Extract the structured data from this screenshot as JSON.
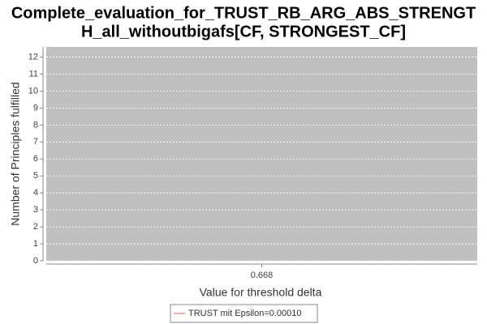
{
  "chart_data": {
    "type": "line",
    "title": [
      "Complete_evaluation_for_TRUST_RB_ARG_ABS_STRENGT",
      "H_all_withoutbigafs[CF, STRONGEST_CF]"
    ],
    "x_label": "Value for threshold delta",
    "y_label": "Number of Principles fulfilled",
    "categories": [
      "0.668"
    ],
    "series": [
      {
        "name": "TRUST mit Epsilon=0.00010",
        "color": "#ff5555",
        "values": [
          null
        ]
      }
    ],
    "ylim": [
      0,
      12.6
    ],
    "yticks": [
      0,
      1,
      2,
      3,
      4,
      5,
      6,
      7,
      8,
      9,
      10,
      11,
      12
    ],
    "grid": true,
    "legend": "bottom"
  }
}
